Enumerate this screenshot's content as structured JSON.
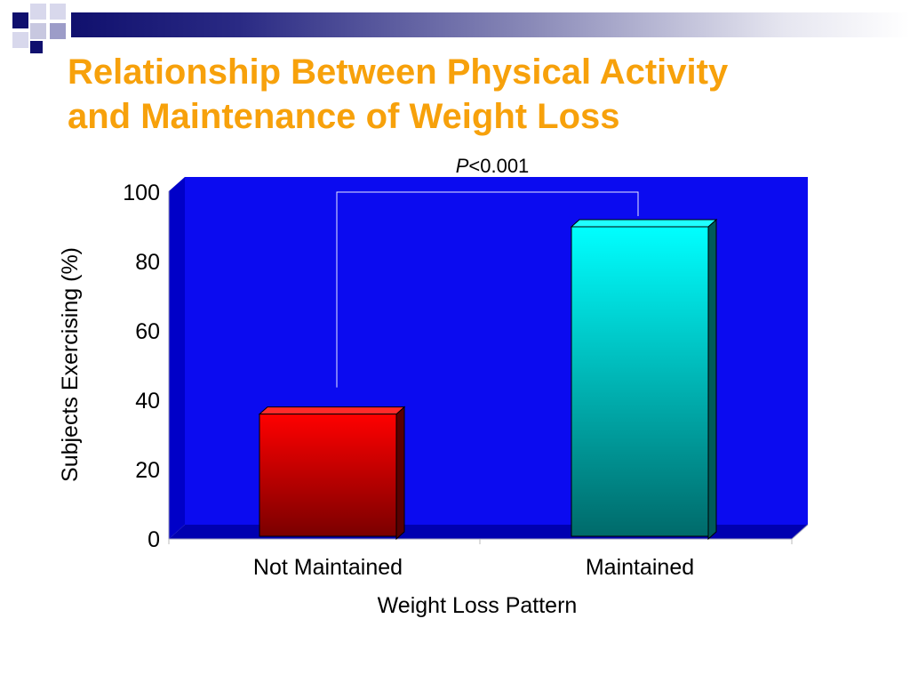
{
  "slide": {
    "title_line1": "Relationship Between Physical Activity",
    "title_line2": "and Maintenance of Weight Loss"
  },
  "colors": {
    "title": "#f7a10b",
    "plot_background": "#0b0bf0",
    "bar_not_maintained": "#ff0000",
    "bar_maintained": "#00ffff"
  },
  "chart_data": {
    "type": "bar",
    "categories": [
      "Not Maintained",
      "Maintained"
    ],
    "values": [
      36,
      90
    ],
    "xlabel": "Weight Loss Pattern",
    "ylabel": "Subjects Exercising (%)",
    "ylim": [
      0,
      100
    ],
    "yticks": [
      0,
      20,
      40,
      60,
      80,
      100
    ],
    "grid": false,
    "legend": "none",
    "annotation": {
      "italic_part": "P",
      "rest": "<0.001"
    }
  }
}
